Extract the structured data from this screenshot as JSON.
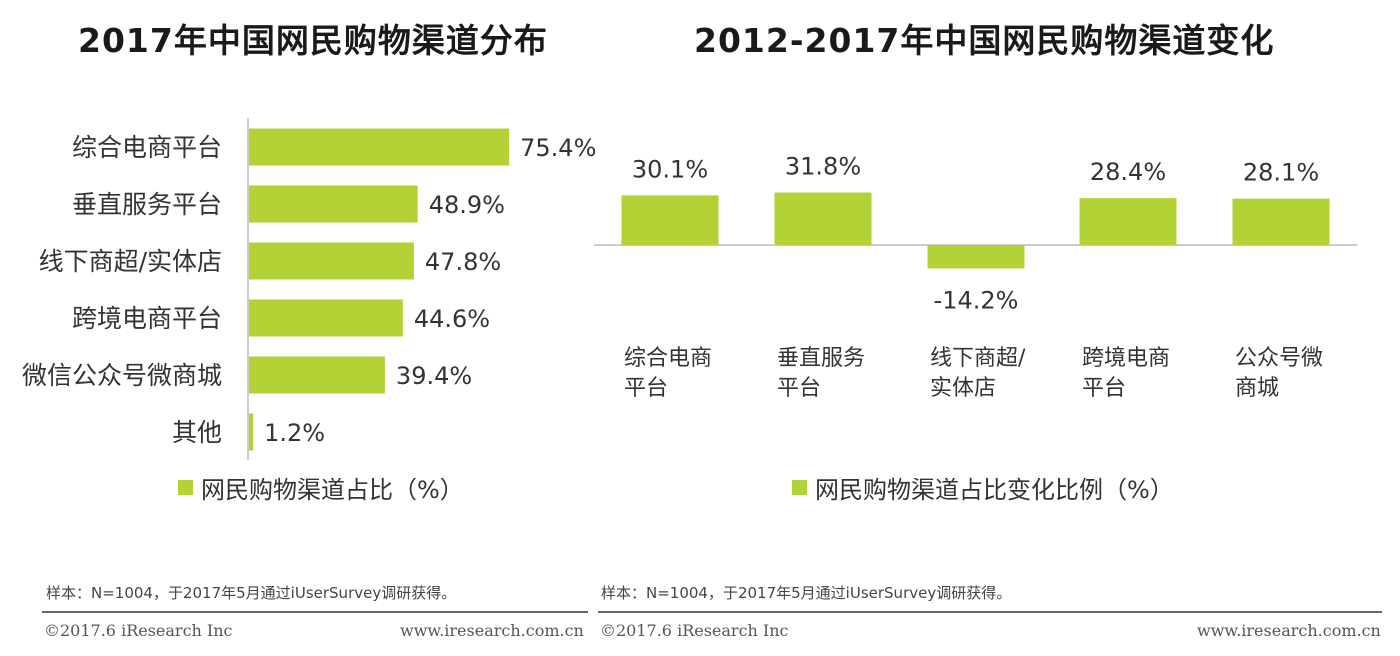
{
  "colors": {
    "bar": "#b2d235",
    "axis": "#9a9a9a",
    "text": "#333333"
  },
  "chart_data": [
    {
      "type": "bar",
      "orientation": "horizontal",
      "title": "2017年中国网民购物渠道分布",
      "categories": [
        "综合电商平台",
        "垂直服务平台",
        "线下商超/实体店",
        "跨境电商平台",
        "微信公众号微商城",
        "其他"
      ],
      "values": [
        75.4,
        48.9,
        47.8,
        44.6,
        39.4,
        1.2
      ],
      "value_labels": [
        "75.4%",
        "48.9%",
        "47.8%",
        "44.6%",
        "39.4%",
        "1.2%"
      ],
      "unit": "%",
      "legend": "网民购物渠道占比（%）",
      "legend_position": "bottom"
    },
    {
      "type": "bar",
      "orientation": "vertical",
      "title": "2012-2017年中国网民购物渠道变化",
      "categories": [
        [
          "综合电商",
          "平台"
        ],
        [
          "垂直服务",
          "平台"
        ],
        [
          "线下商超/",
          "实体店"
        ],
        [
          "跨境电商",
          "平台"
        ],
        [
          "公众号微",
          "商城"
        ]
      ],
      "values": [
        30.1,
        31.8,
        -14.2,
        28.4,
        28.1
      ],
      "value_labels": [
        "30.1%",
        "31.8%",
        "-14.2%",
        "28.4%",
        "28.1%"
      ],
      "unit": "%",
      "legend": "网民购物渠道占比变化比例（%）",
      "legend_position": "bottom"
    }
  ],
  "footer": {
    "sample_note": "样本：N=1004，于2017年5月通过iUserSurvey调研获得。",
    "copyright": "©2017.6 iResearch Inc",
    "website": "www.iresearch.com.cn"
  }
}
